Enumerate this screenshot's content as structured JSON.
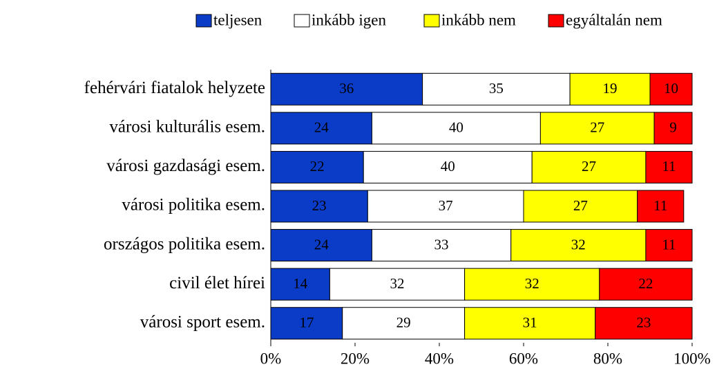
{
  "chart_data": {
    "type": "bar",
    "orientation": "horizontal",
    "stacked": true,
    "categories": [
      "fehérvári fiatalok helyzete",
      "városi kulturális esem.",
      "városi gazdasági esem.",
      "városi politika esem.",
      "országos politika esem.",
      "civil élet hírei",
      "városi sport esem."
    ],
    "series": [
      {
        "name": "teljesen",
        "color": "#0a3cc8",
        "values": [
          36,
          24,
          22,
          23,
          24,
          14,
          17
        ]
      },
      {
        "name": "inkább igen",
        "color": "#ffffff",
        "values": [
          35,
          40,
          40,
          37,
          33,
          32,
          29
        ]
      },
      {
        "name": "inkább nem",
        "color": "#ffff00",
        "values": [
          19,
          27,
          27,
          27,
          32,
          32,
          31
        ]
      },
      {
        "name": "egyáltalán nem",
        "color": "#ff0000",
        "values": [
          10,
          9,
          11,
          11,
          11,
          22,
          23
        ]
      }
    ],
    "xlim": [
      0,
      100
    ],
    "xticks": [
      {
        "value": 0,
        "label": "0%"
      },
      {
        "value": 20,
        "label": "20%"
      },
      {
        "value": 40,
        "label": "40%"
      },
      {
        "value": 60,
        "label": "60%"
      },
      {
        "value": 80,
        "label": "80%"
      },
      {
        "value": 100,
        "label": "100%"
      }
    ],
    "legend": "top-right"
  }
}
